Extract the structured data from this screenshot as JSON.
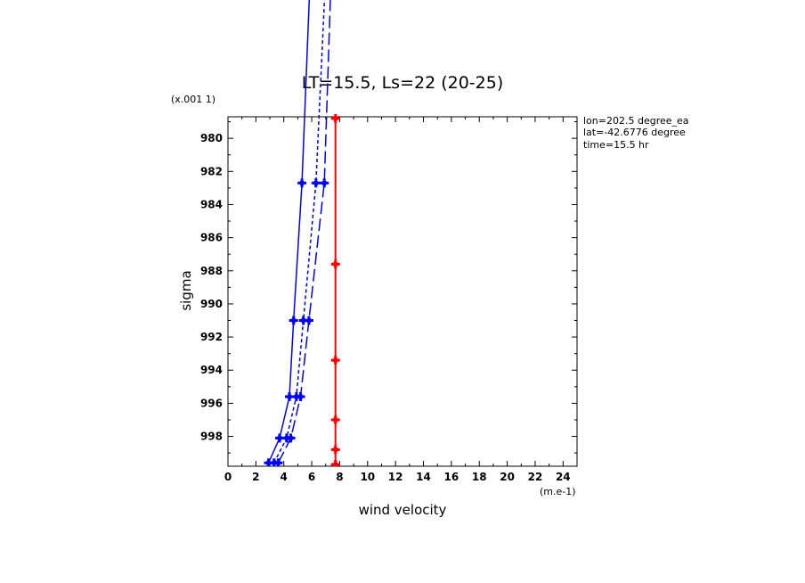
{
  "chart_data": {
    "type": "line",
    "title": "LT=15.5, Ls=22 (20-25)",
    "xlabel": "wind velocity",
    "ylabel": "sigma",
    "x_unit": "(m.e-1)",
    "y_unit": "(x.001 1)",
    "info": [
      "lon=202.5 degree_ea",
      "lat=-42.6776 degree",
      "time=15.5 hr"
    ],
    "xlim": [
      0,
      25
    ],
    "ylim": [
      999.8,
      978.7
    ],
    "xticks": [
      "0",
      "2",
      "4",
      "6",
      "8",
      "10",
      "12",
      "14",
      "16",
      "18",
      "20",
      "22",
      "24"
    ],
    "yticks": [
      "980",
      "982",
      "984",
      "986",
      "988",
      "990",
      "992",
      "994",
      "996",
      "998"
    ],
    "grid": false,
    "series": [
      {
        "color": "#0000ff",
        "dash": "solid",
        "x": [
          2.9,
          3.7,
          4.4,
          4.7,
          5.3,
          5.9
        ],
        "y": [
          999.6,
          998.1,
          995.6,
          991.0,
          982.7,
          970.0
        ]
      },
      {
        "color": "#0000ff",
        "dash": "short",
        "x": [
          3.3,
          4.2,
          4.9,
          5.4,
          6.3,
          7.0
        ],
        "y": [
          999.6,
          998.1,
          995.6,
          991.0,
          982.7,
          970.0
        ]
      },
      {
        "color": "#0000ff",
        "dash": "long",
        "x": [
          3.6,
          4.5,
          5.2,
          5.8,
          6.9,
          7.4
        ],
        "y": [
          999.6,
          998.1,
          995.6,
          991.0,
          982.7,
          970.0
        ]
      },
      {
        "color": "#ff0000",
        "dash": "solid",
        "x": [
          7.7,
          7.7,
          7.7,
          7.7,
          7.7,
          7.7,
          7.7
        ],
        "y": [
          978.8,
          987.6,
          993.4,
          997.0,
          998.8,
          999.7,
          999.7
        ]
      }
    ]
  }
}
